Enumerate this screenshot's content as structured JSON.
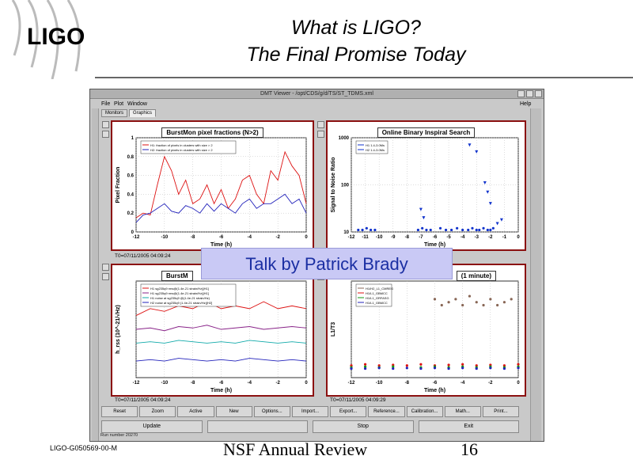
{
  "slide": {
    "logo_text": "LIGO",
    "title_line1": "What is LIGO?",
    "title_line2": "The Final Promise Today",
    "footer_id": "LIGO-G050569-00-M",
    "footer_event": "NSF Annual Review",
    "page_number": "16",
    "callout": "Talk by Patrick Brady"
  },
  "window": {
    "title": "DMT Viewer - /opt/CDS/g/d/TS/ST_TDMS.xml",
    "menu": [
      "File",
      "Plot",
      "Window"
    ],
    "menu_help": "Help",
    "tabs": [
      "Monitors",
      "Graphics"
    ],
    "active_tab": "Graphics",
    "buttons_row1": [
      "Reset",
      "Zoom",
      "Active",
      "New",
      "Options...",
      "Import...",
      "Export...",
      "Reference...",
      "Calibration...",
      "Math...",
      "Print..."
    ],
    "buttons_row2": [
      "Update",
      "",
      "Stop",
      "Exit"
    ],
    "run_number": "Run number 20270"
  },
  "panels": {
    "tl": {
      "title": "BurstMon pixel fractions (N>2)",
      "ylabel": "Pixel Fraction",
      "xlabel": "Time (h)",
      "legend": [
        "H1: fraction of pixels in clusters with size > 2",
        "H2: fraction of pixels in clusters with size > 2"
      ],
      "status": "T0=07/11/2005 04:09:24"
    },
    "tr": {
      "title": "Online Binary Inspiral Search",
      "ylabel": "Signal to Noise Ratio",
      "xlabel": "Time (h)",
      "legend": [
        "H1 1.4-3.0Ms",
        "H2 1.4-3.0Ms"
      ]
    },
    "bl": {
      "title": "BurstM",
      "ylabel": "h_rss (10^-21/√Hz)",
      "xlabel": "Time (h)",
      "legend": [
        "H1 sg235q9 rms@(1.4e-21 strain/Hz)[H1]",
        "H1 sg235q9 rms@(1.4e-21 strain/Hz)[H1]",
        "H1 noise at sg235q9 @(1.4e-21 strain/Hz)",
        "H2 noise at sg235q9 (1.4e-21 strain/Hz)[H2]"
      ],
      "status": "T0=07/11/2005 04:09:24"
    },
    "br": {
      "title": "(1 minute)",
      "ylabel": "L1/T3",
      "xlabel": "Time (h)",
      "legend": [
        "H1/H2_L1_CMREG",
        "H1/L1_GBMCC",
        "H1/L1_GRFASG",
        "H1/L1_GBMCC"
      ],
      "status": "T0=07/11/2005 04:09:29"
    }
  },
  "chart_data": [
    {
      "type": "line",
      "title": "BurstMon pixel fractions (N>2)",
      "xlabel": "Time (h)",
      "ylabel": "Pixel Fraction",
      "xlim": [
        -12,
        0
      ],
      "ylim": [
        0,
        1
      ],
      "x_ticks": [
        -12,
        -10,
        -8,
        -6,
        -4,
        -2,
        0
      ],
      "y_ticks": [
        0,
        0.2,
        0.4,
        0.6,
        0.8,
        1
      ],
      "series": [
        {
          "name": "H1: fraction of pixels in clusters with size > 2",
          "color": "#dd1111",
          "x": [
            -12,
            -11.5,
            -11,
            -10.5,
            -10,
            -9.5,
            -9,
            -8.5,
            -8,
            -7.5,
            -7,
            -6.5,
            -6,
            -5.5,
            -5,
            -4.5,
            -4,
            -3.5,
            -3,
            -2.5,
            -2,
            -1.5,
            -1,
            -0.5,
            0
          ],
          "y": [
            0.15,
            0.2,
            0.18,
            0.5,
            0.8,
            0.65,
            0.4,
            0.55,
            0.3,
            0.35,
            0.5,
            0.3,
            0.45,
            0.25,
            0.35,
            0.55,
            0.6,
            0.4,
            0.3,
            0.65,
            0.55,
            0.85,
            0.7,
            0.6,
            0.3
          ]
        },
        {
          "name": "H2: fraction of pixels in clusters with size > 2",
          "color": "#2222bb",
          "x": [
            -12,
            -11.5,
            -11,
            -10.5,
            -10,
            -9.5,
            -9,
            -8.5,
            -8,
            -7.5,
            -7,
            -6.5,
            -6,
            -5.5,
            -5,
            -4.5,
            -4,
            -3.5,
            -3,
            -2.5,
            -2,
            -1.5,
            -1,
            -0.5,
            0
          ],
          "y": [
            0.1,
            0.18,
            0.2,
            0.25,
            0.3,
            0.22,
            0.2,
            0.28,
            0.25,
            0.2,
            0.3,
            0.22,
            0.3,
            0.25,
            0.2,
            0.3,
            0.35,
            0.25,
            0.3,
            0.3,
            0.35,
            0.4,
            0.3,
            0.35,
            0.2
          ]
        }
      ]
    },
    {
      "type": "scatter",
      "title": "Online Binary Inspiral Search",
      "xlabel": "Time (h)",
      "ylabel": "Signal to Noise Ratio",
      "xlim": [
        -12,
        0
      ],
      "ylim_log": [
        10,
        1000
      ],
      "x_ticks": [
        -12,
        -11,
        -10,
        -9,
        -8,
        -7,
        -6,
        -5,
        -4,
        -3,
        -2,
        -1,
        0
      ],
      "y_ticks": [
        10,
        100,
        1000
      ],
      "series": [
        {
          "name": "H1 1.4-3.0Ms",
          "color": "#1133cc",
          "x": [
            -11.5,
            -11.2,
            -10.9,
            -10.6,
            -10.3,
            -7.2,
            -6.9,
            -6.6,
            -6.3,
            -5.6,
            -5.2,
            -4.8,
            -4.4,
            -4.0,
            -3.6,
            -3.3,
            -3.0,
            -2.8,
            -2.5,
            -2.2,
            -2.0,
            -1.8
          ],
          "y": [
            11,
            11,
            12,
            11,
            11,
            11,
            12,
            11,
            11,
            12,
            11,
            11,
            12,
            11,
            11,
            12,
            11,
            11,
            12,
            11,
            11,
            12
          ]
        },
        {
          "name": "H2 1.4-3.0Ms",
          "color": "#1133cc",
          "x": [
            -7.0,
            -6.8,
            -3.5,
            -3.0,
            -2.4,
            -2.2,
            -2.0,
            -1.5,
            -1.2
          ],
          "y": [
            30,
            20,
            700,
            500,
            110,
            70,
            40,
            15,
            18
          ]
        }
      ]
    },
    {
      "type": "line",
      "title": "BurstM",
      "xlabel": "Time (h)",
      "ylabel": "h_rss (10^-21/√Hz)",
      "xlim": [
        -12,
        0
      ],
      "x_ticks": [
        -12,
        -10,
        -8,
        -6,
        -4,
        -2,
        0
      ],
      "series": [
        {
          "name": "H1 sg235q9 rms@(1.4e-21 strain/Hz)[H1]",
          "color": "#dd1111",
          "x": [
            -12,
            -11,
            -10,
            -9,
            -8,
            -7,
            -6,
            -5,
            -4,
            -3,
            -2,
            -1,
            0
          ],
          "y": [
            0.45,
            0.5,
            0.48,
            0.52,
            0.5,
            0.55,
            0.5,
            0.52,
            0.5,
            0.55,
            0.5,
            0.52,
            0.5
          ]
        },
        {
          "name": "H1 sg235q9 rms@(1.4e-21 strain/Hz)[H1]",
          "color": "#882288",
          "x": [
            -12,
            -11,
            -10,
            -9,
            -8,
            -7,
            -6,
            -5,
            -4,
            -3,
            -2,
            -1,
            0
          ],
          "y": [
            0.35,
            0.36,
            0.34,
            0.37,
            0.36,
            0.38,
            0.35,
            0.36,
            0.37,
            0.35,
            0.36,
            0.37,
            0.36
          ]
        },
        {
          "name": "H1 noise at sg235q9 @(1.4e-21 strain/Hz)",
          "color": "#11aaaa",
          "x": [
            -12,
            -11,
            -10,
            -9,
            -8,
            -7,
            -6,
            -5,
            -4,
            -3,
            -2,
            -1,
            0
          ],
          "y": [
            0.25,
            0.26,
            0.25,
            0.27,
            0.26,
            0.25,
            0.26,
            0.25,
            0.27,
            0.26,
            0.25,
            0.26,
            0.25
          ]
        },
        {
          "name": "H2 noise at sg235q9 (1.4e-21 strain/Hz)[H2]",
          "color": "#2222bb",
          "x": [
            -12,
            -11,
            -10,
            -9,
            -8,
            -7,
            -6,
            -5,
            -4,
            -3,
            -2,
            -1,
            0
          ],
          "y": [
            0.12,
            0.13,
            0.12,
            0.14,
            0.13,
            0.12,
            0.13,
            0.12,
            0.14,
            0.13,
            0.12,
            0.13,
            0.12
          ]
        }
      ]
    },
    {
      "type": "scatter",
      "title": "(1 minute)",
      "xlabel": "Time (h)",
      "ylabel": "L1/T3",
      "xlim": [
        -12,
        0
      ],
      "x_ticks": [
        -12,
        -10,
        -8,
        -6,
        -4,
        -2,
        0
      ],
      "series": [
        {
          "name": "H1/H2_L1_CMREG",
          "color": "#886655",
          "x": [
            -6,
            -5.5,
            -5,
            -4.5,
            -4,
            -3.5,
            -3,
            -2.5,
            -2,
            -1.5,
            -1,
            -0.5
          ],
          "y": [
            2.1,
            2.0,
            2.05,
            2.1,
            2.0,
            2.15,
            2.05,
            2.0,
            2.1,
            2.0,
            2.05,
            2.1
          ]
        },
        {
          "name": "H1/L1_GBMCC",
          "color": "#dd1111",
          "x": [
            -12,
            -11,
            -10,
            -9,
            -8,
            -7,
            -6,
            -5,
            -4,
            -3,
            -2,
            -1,
            0
          ],
          "y": [
            1.0,
            1.02,
            1.0,
            1.01,
            1.0,
            1.02,
            1.0,
            1.01,
            1.02,
            1.0,
            1.01,
            1.0,
            1.02
          ]
        },
        {
          "name": "H1/L1_GRFASG",
          "color": "#119911",
          "x": [
            -12,
            -11,
            -10,
            -9,
            -7,
            -6,
            -5,
            -4,
            -3,
            -2,
            -1,
            0
          ],
          "y": [
            0.97,
            0.98,
            0.97,
            0.98,
            0.97,
            0.98,
            0.97,
            0.98,
            0.97,
            0.98,
            0.97,
            0.98
          ]
        },
        {
          "name": "H1/L1_GBMCC",
          "color": "#2222bb",
          "x": [
            -12,
            -11,
            -10,
            -9,
            -8,
            -7,
            -6,
            -5,
            -4,
            -3,
            -2,
            -1,
            0
          ],
          "y": [
            0.95,
            0.95,
            0.96,
            0.95,
            0.96,
            0.95,
            0.96,
            0.95,
            0.96,
            0.95,
            0.96,
            0.95,
            0.96
          ]
        }
      ]
    }
  ]
}
